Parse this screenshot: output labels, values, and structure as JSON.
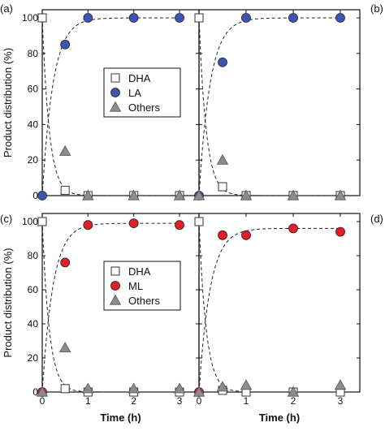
{
  "chart_data": [
    {
      "type": "scatter",
      "panel_label": "(a)",
      "xlabel": "",
      "ylabel": "Product distribution (%)",
      "xlim": [
        0,
        3
      ],
      "ylim": [
        0,
        100
      ],
      "xticks": [
        "0",
        "1",
        "2",
        "3"
      ],
      "yticks": [
        "0",
        "20",
        "40",
        "60",
        "80",
        "100"
      ],
      "legend": {
        "placement": "center",
        "entries": [
          "DHA",
          "LA",
          "Others"
        ]
      },
      "series": [
        {
          "name": "DHA",
          "marker": "square",
          "color": "#ffffff",
          "x": [
            0,
            0.5,
            1,
            2,
            3
          ],
          "y": [
            100,
            3,
            0,
            0,
            0
          ]
        },
        {
          "name": "LA",
          "marker": "circle",
          "color": "#3a55b4",
          "x": [
            0,
            0.5,
            1,
            2,
            3
          ],
          "y": [
            0,
            85,
            100,
            100,
            100
          ]
        },
        {
          "name": "Others",
          "marker": "triangle",
          "color": "#8c8c8c",
          "x": [
            0.5,
            1,
            2,
            3
          ],
          "y": [
            25,
            0,
            0,
            0
          ]
        }
      ]
    },
    {
      "type": "scatter",
      "panel_label": "(b)",
      "xlabel": "",
      "ylabel": "",
      "xlim": [
        0,
        3
      ],
      "ylim": [
        0,
        100
      ],
      "xticks": [
        "0",
        "1",
        "2",
        "3"
      ],
      "yticks": [],
      "legend": null,
      "series": [
        {
          "name": "DHA",
          "marker": "square",
          "color": "#ffffff",
          "x": [
            0,
            0.5,
            1,
            2,
            3
          ],
          "y": [
            100,
            5,
            0,
            0,
            0
          ]
        },
        {
          "name": "LA",
          "marker": "circle",
          "color": "#3a55b4",
          "x": [
            0,
            0.5,
            1,
            2,
            3
          ],
          "y": [
            0,
            75,
            100,
            100,
            100
          ]
        },
        {
          "name": "Others",
          "marker": "triangle",
          "color": "#8c8c8c",
          "x": [
            0,
            0.5,
            1,
            2,
            3
          ],
          "y": [
            0,
            20,
            0,
            0,
            0
          ]
        }
      ]
    },
    {
      "type": "scatter",
      "panel_label": "(c)",
      "xlabel": "Time (h)",
      "ylabel": "Product distribution (%)",
      "xlim": [
        0,
        3
      ],
      "ylim": [
        0,
        100
      ],
      "xticks": [
        "0",
        "1",
        "2",
        "3"
      ],
      "yticks": [
        "0",
        "20",
        "40",
        "60",
        "80",
        "100"
      ],
      "legend": {
        "placement": "center",
        "entries": [
          "DHA",
          "ML",
          "Others"
        ]
      },
      "series": [
        {
          "name": "DHA",
          "marker": "square",
          "color": "#ffffff",
          "x": [
            0,
            0.5,
            1,
            2,
            3
          ],
          "y": [
            100,
            2,
            0,
            0,
            0
          ]
        },
        {
          "name": "ML",
          "marker": "circle",
          "color": "#e41e26",
          "x": [
            0,
            0.5,
            1,
            2,
            3
          ],
          "y": [
            0,
            76,
            98,
            99,
            98
          ]
        },
        {
          "name": "Others",
          "marker": "triangle",
          "color": "#8c8c8c",
          "x": [
            0,
            0.5,
            1,
            2,
            3
          ],
          "y": [
            0,
            26,
            2,
            2,
            2
          ]
        }
      ]
    },
    {
      "type": "scatter",
      "panel_label": "(d)",
      "xlabel": "Time (h)",
      "ylabel": "",
      "xlim": [
        0,
        3
      ],
      "ylim": [
        0,
        100
      ],
      "xticks": [
        "0",
        "1",
        "2",
        "3"
      ],
      "yticks": [],
      "legend": null,
      "series": [
        {
          "name": "DHA",
          "marker": "square",
          "color": "#ffffff",
          "x": [
            0,
            0.5,
            1,
            2,
            3
          ],
          "y": [
            100,
            1,
            0,
            0,
            0
          ]
        },
        {
          "name": "ML",
          "marker": "circle",
          "color": "#e41e26",
          "x": [
            0,
            0.5,
            1,
            2,
            3
          ],
          "y": [
            0,
            92,
            92,
            96,
            94
          ]
        },
        {
          "name": "Others",
          "marker": "triangle",
          "color": "#8c8c8c",
          "x": [
            0,
            0.5,
            1,
            2,
            3
          ],
          "y": [
            0,
            3,
            4,
            0,
            4
          ]
        }
      ]
    }
  ]
}
